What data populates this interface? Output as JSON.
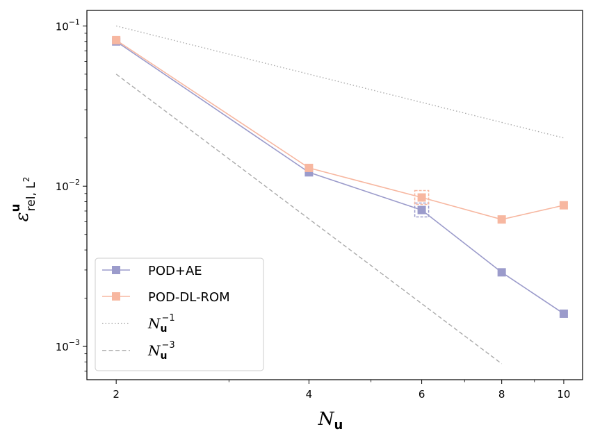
{
  "chart_data": {
    "type": "line",
    "xscale": "log",
    "yscale": "log",
    "xlim": [
      1.8,
      10.7
    ],
    "ylim": [
      0.00062,
      0.125
    ],
    "x_ticks": [
      2,
      4,
      6,
      8,
      10
    ],
    "x_tick_labels": [
      "2",
      "4",
      "6",
      "8",
      "10"
    ],
    "y_ticks": [
      0.001,
      0.01,
      0.1
    ],
    "y_tick_labels": [
      {
        "base": "10",
        "exp": "−3"
      },
      {
        "base": "10",
        "exp": "−2"
      },
      {
        "base": "10",
        "exp": "−1"
      }
    ],
    "xlabel": {
      "main": "N",
      "sub": "u"
    },
    "ylabel": {
      "main": "ε",
      "sup": "u",
      "sub": "rel, L",
      "subsup": "2"
    },
    "series": [
      {
        "name": "POD+AE",
        "legend_label": "POD+AE",
        "color": "#9b9bcb",
        "style": "solid",
        "marker": "square",
        "x": [
          2,
          4,
          6,
          8,
          10
        ],
        "y": [
          0.08,
          0.0122,
          0.0071,
          0.0029,
          0.0016
        ]
      },
      {
        "name": "POD-DL-ROM",
        "legend_label": "POD-DL-ROM",
        "color": "#f7b7a0",
        "style": "solid",
        "marker": "square",
        "x": [
          2,
          4,
          6,
          8,
          10
        ],
        "y": [
          0.0815,
          0.013,
          0.0085,
          0.0062,
          0.0076
        ]
      },
      {
        "name": "N_u^-1 reference",
        "legend_label": {
          "main": "N",
          "sub": "u",
          "sup": "−1"
        },
        "color": "#aaaaaa",
        "style": "dotted",
        "marker": "none",
        "x": [
          2,
          10
        ],
        "y": [
          0.1,
          0.02
        ]
      },
      {
        "name": "N_u^-3 reference",
        "legend_label": {
          "main": "N",
          "sub": "u",
          "sup": "−3"
        },
        "color": "#aaaaaa",
        "style": "dashed",
        "marker": "none",
        "x": [
          2,
          8
        ],
        "y": [
          0.05,
          0.00078
        ]
      }
    ],
    "highlights": [
      {
        "series": "POD+AE",
        "x": 6,
        "color": "#9b9bcb"
      },
      {
        "series": "POD-DL-ROM",
        "x": 6,
        "color": "#f7b7a0"
      }
    ],
    "legend_position": "lower-left",
    "grid": false
  }
}
